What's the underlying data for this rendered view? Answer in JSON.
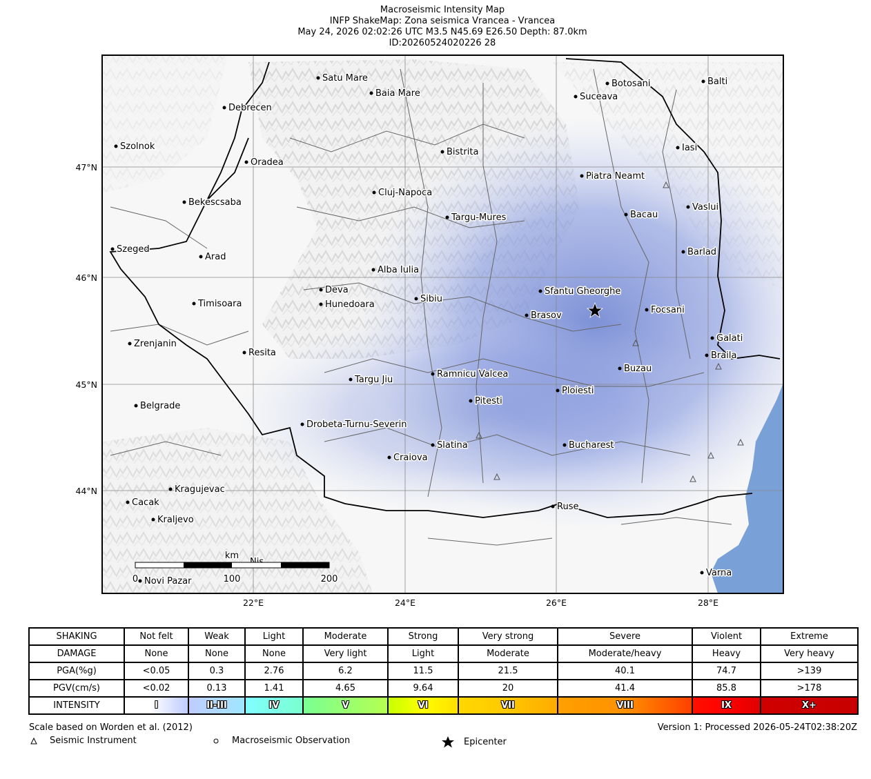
{
  "header": {
    "line1": "Macroseismic Intensity Map",
    "line2": "INFP ShakeMap: Zona seismica Vrancea - Vrancea",
    "line3": "May 24, 2026 02:02:26 UTC M3.5 N45.69 E26.50 Depth: 87.0km",
    "line4": "ID:20260524020226 28"
  },
  "map": {
    "lat_labels": [
      "47°N",
      "46°N",
      "45°N",
      "44°N"
    ],
    "lon_labels": [
      "22°E",
      "24°E",
      "26°E",
      "28°E"
    ],
    "cities": [
      {
        "name": "Satu Mare"
      },
      {
        "name": "Baia Mare"
      },
      {
        "name": "Botosani"
      },
      {
        "name": "Balti"
      },
      {
        "name": "Debrecen"
      },
      {
        "name": "Suceava"
      },
      {
        "name": "Szolnok"
      },
      {
        "name": "Bistrita"
      },
      {
        "name": "Iasi"
      },
      {
        "name": "Oradea"
      },
      {
        "name": "Piatra Neamt"
      },
      {
        "name": "Cluj-Napoca"
      },
      {
        "name": "Bekescsaba"
      },
      {
        "name": "Vaslui"
      },
      {
        "name": "Bacau"
      },
      {
        "name": "Targu-Mures"
      },
      {
        "name": "Szeged"
      },
      {
        "name": "Arad"
      },
      {
        "name": "Barlad"
      },
      {
        "name": "Alba Iulia"
      },
      {
        "name": "Deva"
      },
      {
        "name": "Sfantu Gheorghe"
      },
      {
        "name": "Timisoara"
      },
      {
        "name": "Sibiu"
      },
      {
        "name": "Hunedoara"
      },
      {
        "name": "Focsani"
      },
      {
        "name": "Brasov"
      },
      {
        "name": "Zrenjanin"
      },
      {
        "name": "Galati"
      },
      {
        "name": "Resita"
      },
      {
        "name": "Braila"
      },
      {
        "name": "Buzau"
      },
      {
        "name": "Ramnicu Valcea"
      },
      {
        "name": "Targu Jiu"
      },
      {
        "name": "Ploiesti"
      },
      {
        "name": "Pitesti"
      },
      {
        "name": "Belgrade"
      },
      {
        "name": "Drobeta-Turnu-Severin"
      },
      {
        "name": "Slatina"
      },
      {
        "name": "Bucharest"
      },
      {
        "name": "Craiova"
      },
      {
        "name": "Kragujevac"
      },
      {
        "name": "Cacak"
      },
      {
        "name": "Kraljevo"
      },
      {
        "name": "Ruse"
      },
      {
        "name": "Varna"
      },
      {
        "name": "Novi Pazar"
      },
      {
        "name": "Nis"
      }
    ],
    "scalebar": {
      "unit": "km",
      "labels": [
        "0",
        "100",
        "200"
      ]
    },
    "colors": {
      "intensity_fill": "#8f9fd9",
      "sea": "#7aa0d8",
      "grid": "#888888"
    }
  },
  "legend": {
    "rows": {
      "shaking": [
        "SHAKING",
        "Not felt",
        "Weak",
        "Light",
        "Moderate",
        "Strong",
        "Very strong",
        "Severe",
        "Violent",
        "Extreme"
      ],
      "damage": [
        "DAMAGE",
        "None",
        "None",
        "None",
        "Very light",
        "Light",
        "Moderate",
        "Moderate/heavy",
        "Heavy",
        "Very heavy"
      ],
      "pga": [
        "PGA(%g)",
        "<0.05",
        "0.3",
        "2.76",
        "6.2",
        "11.5",
        "21.5",
        "40.1",
        "74.7",
        ">139"
      ],
      "pgv": [
        "PGV(cm/s)",
        "<0.02",
        "0.13",
        "1.41",
        "4.65",
        "9.64",
        "20",
        "41.4",
        "85.8",
        ">178"
      ],
      "intensity": [
        "INTENSITY",
        "I",
        "II-III",
        "IV",
        "V",
        "VI",
        "VII",
        "VIII",
        "IX",
        "X+"
      ]
    },
    "colors": [
      "#ffffff",
      "#bfccff",
      "#80ffff",
      "#7aff93",
      "#ffff00",
      "#ffc800",
      "#ff9100",
      "#ff0000",
      "#c80000"
    ]
  },
  "footer": {
    "left": "Scale based on Worden et al. (2012)",
    "right": "Version 1: Processed 2026-05-24T02:38:20Z",
    "seismic_instrument": "Seismic Instrument",
    "macroseismic_observation": "Macroseismic Observation",
    "epicenter": "Epicenter"
  }
}
